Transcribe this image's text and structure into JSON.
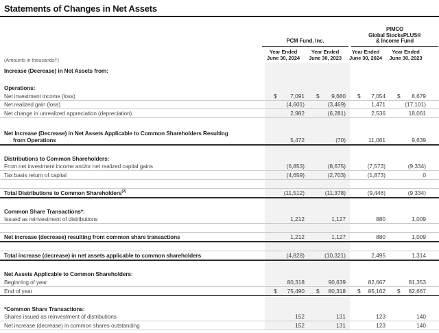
{
  "title": "Statements of Changes in Net Assets",
  "note": "(Amounts in thousands†)",
  "header": {
    "groups": [
      {
        "lines": [
          "PCM Fund, Inc."
        ]
      },
      {
        "lines": [
          "PIMCO",
          "Global StocksPLUS®",
          "& Income Fund"
        ]
      }
    ],
    "columns": [
      {
        "line1": "Year Ended",
        "line2": "June 30, 2024"
      },
      {
        "line1": "Year Ended",
        "line2": "June 30, 2023"
      },
      {
        "line1": "Year Ended",
        "line2": "June 30, 2024"
      },
      {
        "line1": "Year Ended",
        "line2": "June 30, 2023"
      }
    ]
  },
  "colors": {
    "band": "#f2f2f2",
    "thin_line": "#cbcbcb",
    "dark_line": "#2b2b2b",
    "text_primary": "#1f1f1f",
    "text_secondary": "#4a4a4a"
  },
  "table": {
    "rows": [
      {
        "type": "section",
        "first": true,
        "label": "Increase (Decrease) in Net Assets from:"
      },
      {
        "type": "spacer"
      },
      {
        "type": "section",
        "label": "Operations:"
      },
      {
        "type": "data",
        "label": "Net investment income (loss)",
        "dollar": true,
        "values": [
          "7,091",
          "9,680",
          "7,054",
          "8,679"
        ]
      },
      {
        "type": "data",
        "label": "Net realized gain (loss)",
        "values": [
          "(4,601)",
          "(3,469)",
          "1,471",
          "(17,101)"
        ]
      },
      {
        "type": "data",
        "label": "Net change in unrealized appreciation (depreciation)",
        "values": [
          "2,982",
          "(6,281)",
          "2,536",
          "18,061"
        ]
      },
      {
        "type": "spacer"
      },
      {
        "type": "total2",
        "label": "Net Increase (Decrease) in Net Assets Applicable to Common Shareholders Resulting",
        "label2": "from Operations",
        "values": [
          "5,472",
          "(70)",
          "11,061",
          "9,639"
        ]
      },
      {
        "type": "spacer"
      },
      {
        "type": "section",
        "label": "Distributions to Common Shareholders:"
      },
      {
        "type": "data",
        "label": "From net investment income and/or net realized capital gains",
        "values": [
          "(6,853)",
          "(8,675)",
          "(7,573)",
          "(9,334)"
        ]
      },
      {
        "type": "data",
        "label": "Tax basis return of capital",
        "values": [
          "(4,659)",
          "(2,703)",
          "(1,873)",
          "0"
        ]
      },
      {
        "type": "spacer"
      },
      {
        "type": "total",
        "label": "Total Distributions to Common Shareholders",
        "sup": "(2)",
        "values": [
          "(11,512)",
          "(11,378)",
          "(9,446)",
          "(9,334)"
        ]
      },
      {
        "type": "spacer"
      },
      {
        "type": "section",
        "label": "Common Share Transactions*:"
      },
      {
        "type": "data",
        "label": "Issued as reinvestment of distributions",
        "values": [
          "1,212",
          "1,127",
          "880",
          "1,009"
        ]
      },
      {
        "type": "spacer"
      },
      {
        "type": "total",
        "label": "Net increase (decrease) resulting from common share transactions",
        "values": [
          "1,212",
          "1,127",
          "880",
          "1,009"
        ]
      },
      {
        "type": "spacer"
      },
      {
        "type": "total",
        "label": "Total increase (decrease) in net assets applicable to common shareholders",
        "values": [
          "(4,828)",
          "(10,321)",
          "2,495",
          "1,314"
        ]
      },
      {
        "type": "spacer"
      },
      {
        "type": "section",
        "label": "Net Assets Applicable to Common Shareholders:"
      },
      {
        "type": "data",
        "label": "Beginning of year",
        "values": [
          "80,318",
          "90,639",
          "82,667",
          "81,353"
        ]
      },
      {
        "type": "data_end",
        "label": "End of year",
        "dollar": true,
        "values": [
          "75,490",
          "80,318",
          "85,162",
          "82,667"
        ]
      },
      {
        "type": "spacer"
      },
      {
        "type": "section",
        "label": "*Common Share Transactions:"
      },
      {
        "type": "data",
        "label": "Shares issued as reinvestment of distributions",
        "values": [
          "152",
          "131",
          "123",
          "140"
        ]
      },
      {
        "type": "data",
        "label": "Net increase (decrease) in common shares outstanding",
        "values": [
          "152",
          "131",
          "123",
          "140"
        ]
      }
    ]
  }
}
